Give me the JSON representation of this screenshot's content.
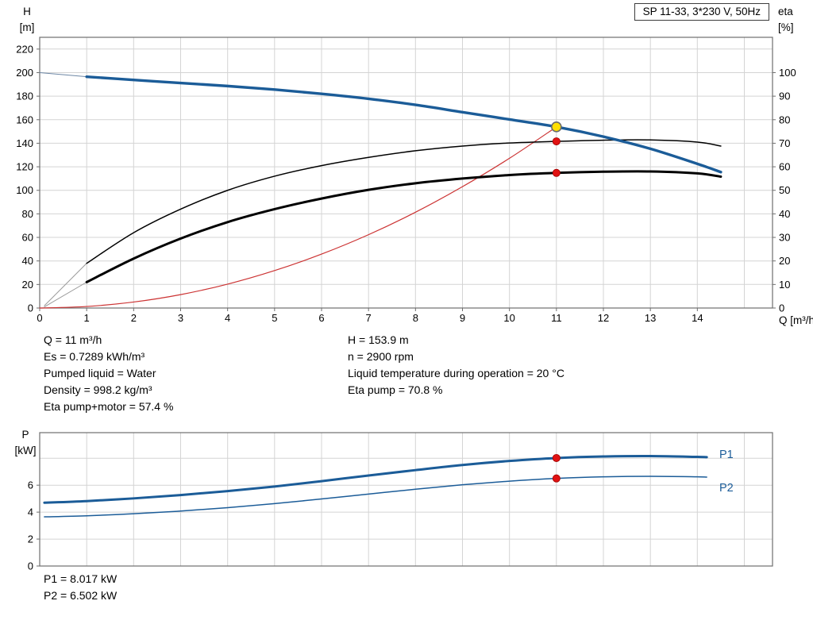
{
  "title_box": "SP 11-33, 3*230 V, 50Hz",
  "colors": {
    "curve_blue": "#1b5c98",
    "curve_black": "#000000",
    "curve_red": "#cc3333",
    "leadin_gray": "#9a9a9a",
    "leadin_blue": "#6d87a5",
    "dot_red": "#e01212",
    "dot_yellow": "#ffdf00",
    "grid": "#d4d4d4",
    "frame": "#6e6e6e"
  },
  "axes": {
    "h_title": [
      "H",
      "[m]"
    ],
    "eta_title": [
      "eta",
      "[%]"
    ],
    "q_title": "Q [m³/h]",
    "p_title": [
      "P",
      "[kW]"
    ]
  },
  "info_left": [
    "Q = 11 m³/h",
    "Es = 0.7289 kWh/m³",
    "Pumped liquid = Water",
    "Density = 998.2 kg/m³",
    "Eta pump+motor = 57.4 %"
  ],
  "info_right": [
    "H = 153.9 m",
    "n = 2900 rpm",
    "Liquid temperature during operation = 20 °C",
    "Eta pump = 70.8 %"
  ],
  "power_readout": [
    "P1 = 8.017 kW",
    "P2 = 6.502 kW"
  ],
  "chart_data": [
    {
      "type": "line",
      "name": "pump-performance-chart",
      "title": "SP 11-33, 3*230 V, 50Hz",
      "xlabel": "Q [m³/h]",
      "ylabel_left": "H [m]",
      "ylabel_right": "eta [%]",
      "xlim": [
        0,
        15.6
      ],
      "x_ticks": [
        0,
        1,
        2,
        3,
        4,
        5,
        6,
        7,
        8,
        9,
        10,
        11,
        12,
        13,
        14
      ],
      "x_grid": [
        1,
        2,
        3,
        4,
        5,
        6,
        7,
        8,
        9,
        10,
        11,
        12,
        13,
        14,
        15
      ],
      "left": {
        "lim": [
          0,
          230
        ],
        "ticks": [
          0,
          20,
          40,
          60,
          80,
          100,
          120,
          140,
          160,
          180,
          200,
          220
        ],
        "grid": [
          20,
          40,
          60,
          80,
          100,
          120,
          140,
          160,
          180,
          200,
          220
        ]
      },
      "right": {
        "lim": [
          0,
          115
        ],
        "ticks": [
          0,
          10,
          20,
          30,
          40,
          50,
          60,
          70,
          80,
          90,
          100
        ]
      },
      "series": [
        {
          "name": "head-curve-leadin",
          "axis": "left",
          "color": "#6d87a5",
          "width": 1,
          "x": [
            0,
            1
          ],
          "y": [
            200,
            196.5
          ]
        },
        {
          "name": "eta-pump-leadin",
          "axis": "right",
          "color": "#9a9a9a",
          "width": 1,
          "x": [
            0.1,
            1
          ],
          "y": [
            1,
            19
          ]
        },
        {
          "name": "eta-pump-motor-leadin",
          "axis": "right",
          "color": "#9a9a9a",
          "width": 1,
          "x": [
            0.1,
            1
          ],
          "y": [
            0.5,
            11
          ]
        },
        {
          "name": "system-curve",
          "axis": "left",
          "color": "#cc3333",
          "width": 1.2,
          "x": [
            0,
            1,
            2,
            3,
            4,
            5,
            6,
            7,
            8,
            9,
            10,
            11
          ],
          "y": [
            0,
            1.3,
            5.1,
            11.4,
            20.3,
            31.8,
            45.8,
            62.3,
            81.4,
            103.1,
            127.2,
            153.9
          ]
        },
        {
          "name": "eta-pump-curve",
          "axis": "right",
          "color": "#000000",
          "width": 1.5,
          "x": [
            1,
            2,
            3,
            4,
            5,
            6,
            7,
            8,
            9,
            10,
            11,
            12,
            13,
            14,
            14.5
          ],
          "y": [
            19,
            32,
            42,
            50,
            56,
            60.5,
            64,
            66.8,
            68.8,
            70.1,
            70.8,
            71.3,
            71.4,
            70.5,
            68.8
          ]
        },
        {
          "name": "eta-pump-motor-curve",
          "axis": "right",
          "color": "#000000",
          "width": 3,
          "x": [
            1,
            2,
            3,
            4,
            5,
            6,
            7,
            8,
            9,
            10,
            11,
            12,
            13,
            14,
            14.5
          ],
          "y": [
            11,
            21,
            29.5,
            36.5,
            42,
            46.5,
            50.2,
            53,
            55,
            56.5,
            57.4,
            57.9,
            58,
            57.2,
            55.8
          ]
        },
        {
          "name": "head-curve",
          "axis": "left",
          "color": "#1b5c98",
          "width": 3.4,
          "x": [
            1,
            2,
            3,
            4,
            5,
            6,
            7,
            8,
            9,
            10,
            11,
            12,
            13,
            14,
            14.5
          ],
          "y": [
            196.5,
            193.8,
            191.2,
            188.6,
            185.6,
            182,
            177.8,
            172.6,
            166.4,
            160.2,
            153.9,
            145.6,
            135.3,
            122.5,
            115.5
          ]
        }
      ],
      "markers": [
        {
          "name": "duty-point",
          "x": 11,
          "y": 153.9,
          "axis": "left",
          "style": "duty"
        },
        {
          "name": "eta-pump-point",
          "x": 11,
          "y": 70.8,
          "axis": "right",
          "style": "red"
        },
        {
          "name": "eta-pump-motor-point",
          "x": 11,
          "y": 57.4,
          "axis": "right",
          "style": "red"
        }
      ]
    },
    {
      "type": "line",
      "name": "power-chart",
      "title": "",
      "xlabel": "",
      "ylabel_left": "P [kW]",
      "xlim": [
        0,
        15.6
      ],
      "x_ticks": [],
      "x_grid": [
        1,
        2,
        3,
        4,
        5,
        6,
        7,
        8,
        9,
        10,
        11,
        12,
        13,
        14,
        15
      ],
      "left": {
        "lim": [
          0,
          9.9
        ],
        "ticks": [
          0,
          2,
          4,
          6
        ],
        "grid": [
          2,
          4,
          6,
          8
        ]
      },
      "series": [
        {
          "name": "P1",
          "axis": "left",
          "color": "#1b5c98",
          "width": 3,
          "x": [
            0.1,
            1,
            2,
            3,
            4,
            5,
            6,
            7,
            8,
            9,
            10,
            11,
            12,
            13,
            14,
            14.2
          ],
          "y": [
            4.7,
            4.82,
            5.02,
            5.27,
            5.56,
            5.9,
            6.3,
            6.72,
            7.12,
            7.5,
            7.8,
            8.017,
            8.13,
            8.16,
            8.1,
            8.08
          ]
        },
        {
          "name": "P2",
          "axis": "left",
          "color": "#1b5c98",
          "width": 1.5,
          "x": [
            0.1,
            1,
            2,
            3,
            4,
            5,
            6,
            7,
            8,
            9,
            10,
            11,
            12,
            13,
            14,
            14.2
          ],
          "y": [
            3.65,
            3.73,
            3.88,
            4.08,
            4.33,
            4.63,
            4.98,
            5.34,
            5.7,
            6.03,
            6.3,
            6.502,
            6.62,
            6.66,
            6.62,
            6.6
          ]
        }
      ],
      "markers": [
        {
          "name": "p1-point",
          "x": 11,
          "y": 8.017,
          "axis": "left",
          "style": "red"
        },
        {
          "name": "p2-point",
          "x": 11,
          "y": 6.502,
          "axis": "left",
          "style": "red"
        }
      ]
    }
  ]
}
